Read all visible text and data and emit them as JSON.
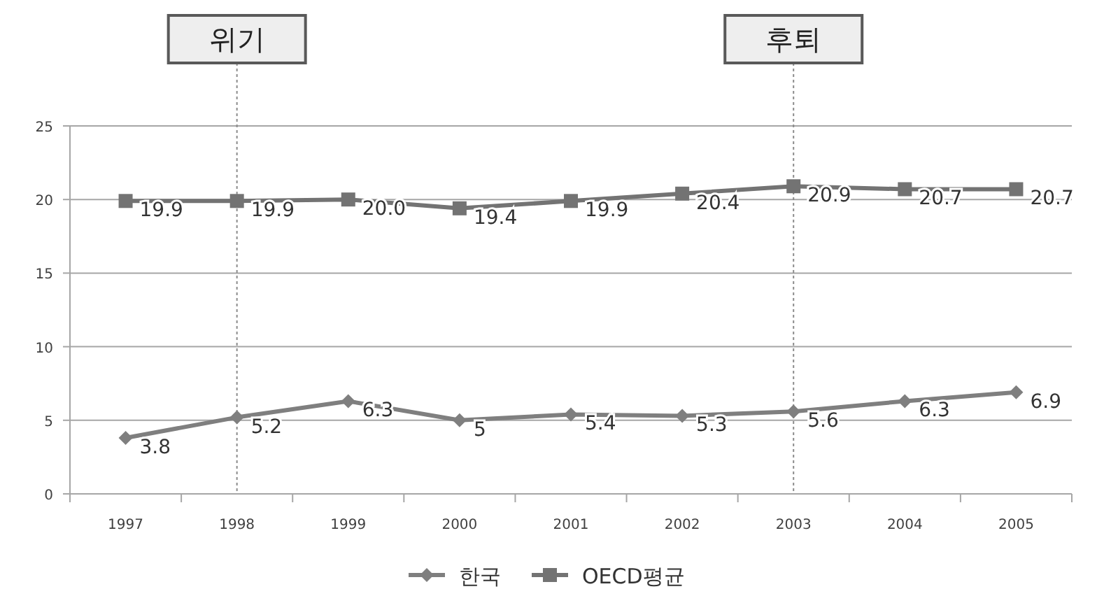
{
  "chart_data": {
    "type": "line",
    "categories": [
      "1997",
      "1998",
      "1999",
      "2000",
      "2001",
      "2002",
      "2003",
      "2004",
      "2005"
    ],
    "series": [
      {
        "name": "한국",
        "color": "#7f7f7f",
        "marker": "diamond",
        "values": [
          3.8,
          5.2,
          6.3,
          5,
          5.4,
          5.3,
          5.6,
          6.3,
          6.9
        ],
        "value_labels": [
          "3.8",
          "5.2",
          "6.3",
          "5",
          "5.4",
          "5.3",
          "5.6",
          "6.3",
          "6.9"
        ]
      },
      {
        "name": "OECD평균",
        "color": "#737373",
        "marker": "square",
        "values": [
          19.9,
          19.9,
          20.0,
          19.4,
          19.9,
          20.4,
          20.9,
          20.7,
          20.7
        ],
        "value_labels": [
          "19.9",
          "19.9",
          "20.0",
          "19.4",
          "19.9",
          "20.4",
          "20.9",
          "20.7",
          "20.7"
        ]
      }
    ],
    "ylim": [
      0,
      25
    ],
    "yticks": [
      0,
      5,
      10,
      15,
      20,
      25
    ],
    "grid": "y",
    "legend": "bottom",
    "line_style": "solid",
    "ref_lines": [
      {
        "axis": "x",
        "value": "1998",
        "label": "위기",
        "line_style": "dotted",
        "color": "#8c8c8c"
      },
      {
        "axis": "x",
        "value": "2003",
        "label": "후퇴",
        "line_style": "dotted",
        "color": "#8c8c8c"
      }
    ]
  }
}
